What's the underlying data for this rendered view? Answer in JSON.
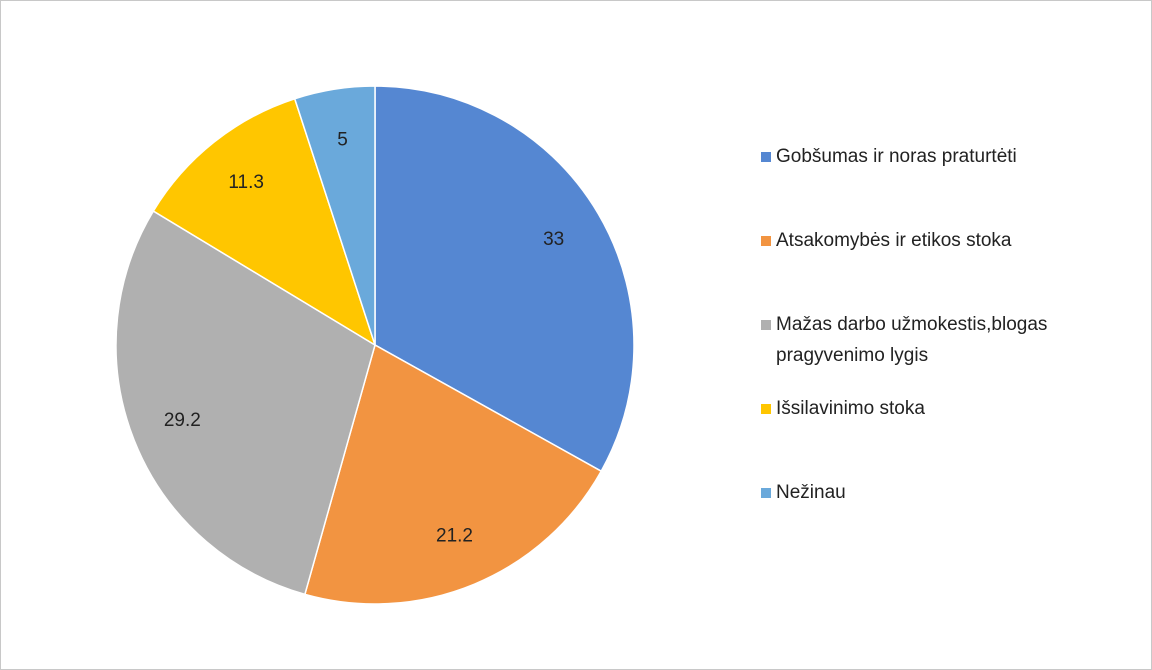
{
  "chart_data": {
    "type": "pie",
    "categories": [
      "Gobšumas ir noras praturtėti",
      "Atsakomybės ir etikos stoka",
      "Mažas darbo užmokestis,blogas pragyvenimo lygis",
      "Išsilavinimo stoka",
      "Nežinau"
    ],
    "values": [
      33,
      21.2,
      29.2,
      11.3,
      5
    ],
    "colors": [
      "#5587d2",
      "#f29441",
      "#b0b0b0",
      "#ffc600",
      "#6aa9db"
    ],
    "legend": "right"
  }
}
